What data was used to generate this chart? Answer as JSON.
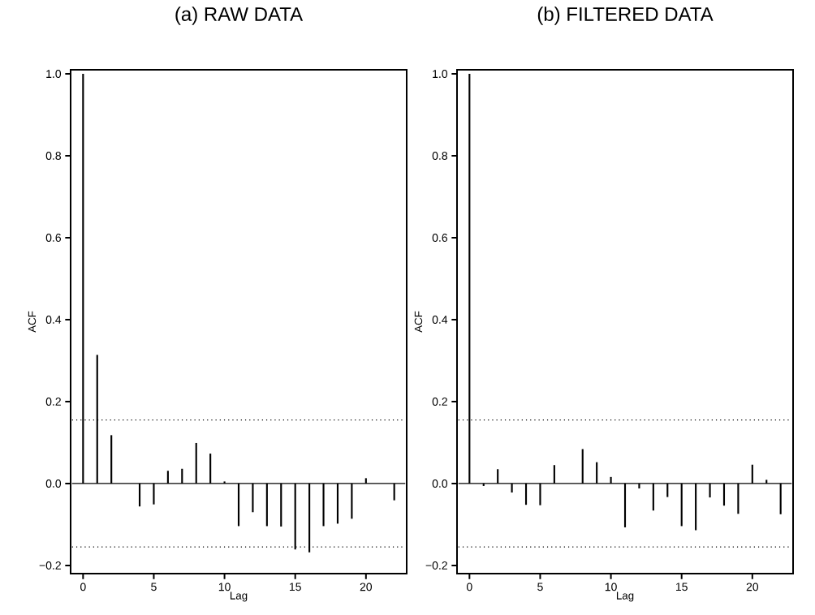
{
  "chart_data": [
    {
      "type": "bar",
      "title": "(a) RAW DATA",
      "xlabel": "Lag",
      "ylabel": "ACF",
      "color": "#000000",
      "x": [
        0,
        1,
        2,
        3,
        4,
        5,
        6,
        7,
        8,
        9,
        10,
        11,
        12,
        13,
        14,
        15,
        16,
        17,
        18,
        19,
        20,
        21,
        22
      ],
      "values": [
        1.0,
        0.314,
        0.118,
        0,
        -0.056,
        -0.051,
        0.031,
        0.036,
        0.099,
        0.073,
        0.005,
        -0.104,
        -0.07,
        -0.104,
        -0.105,
        -0.161,
        -0.168,
        -0.104,
        -0.098,
        -0.086,
        0.013,
        0,
        -0.041
      ],
      "xlim": [
        -0.88,
        22.88
      ],
      "ylim": [
        -0.22,
        1.01
      ],
      "xticks": [
        0,
        5,
        10,
        15,
        20
      ],
      "yticks": [
        {
          "value": -0.2,
          "label": "−0.2"
        },
        {
          "value": 0,
          "label": "0.0"
        },
        {
          "value": 0.2,
          "label": "0.2"
        },
        {
          "value": 0.4,
          "label": "0.4"
        },
        {
          "value": 0.6,
          "label": "0.6"
        },
        {
          "value": 0.8,
          "label": "0.8"
        },
        {
          "value": 1.0,
          "label": "1.0"
        }
      ],
      "ref_lines": [
        {
          "axis": "y",
          "value": 0,
          "line_style": "solid"
        },
        {
          "axis": "y",
          "value": 0.155,
          "line_style": "dotted"
        },
        {
          "axis": "y",
          "value": -0.155,
          "line_style": "dotted"
        }
      ]
    },
    {
      "type": "bar",
      "title": "(b) FILTERED DATA",
      "xlabel": "Lag",
      "ylabel": "ACF",
      "color": "#000000",
      "x": [
        0,
        1,
        2,
        3,
        4,
        5,
        6,
        7,
        8,
        9,
        10,
        11,
        12,
        13,
        14,
        15,
        16,
        17,
        18,
        19,
        20,
        21,
        22
      ],
      "values": [
        1.0,
        -0.006,
        0.035,
        -0.022,
        -0.052,
        -0.053,
        0.045,
        0,
        0.084,
        0.052,
        0.016,
        -0.107,
        -0.012,
        -0.066,
        -0.033,
        -0.104,
        -0.114,
        -0.034,
        -0.054,
        -0.074,
        0.046,
        0.009,
        -0.075
      ],
      "xlim": [
        -0.88,
        22.88
      ],
      "ylim": [
        -0.22,
        1.01
      ],
      "xticks": [
        0,
        5,
        10,
        15,
        20
      ],
      "yticks": [
        {
          "value": -0.2,
          "label": "−0.2"
        },
        {
          "value": 0,
          "label": "0.0"
        },
        {
          "value": 0.2,
          "label": "0.2"
        },
        {
          "value": 0.4,
          "label": "0.4"
        },
        {
          "value": 0.6,
          "label": "0.6"
        },
        {
          "value": 0.8,
          "label": "0.8"
        },
        {
          "value": 1.0,
          "label": "1.0"
        }
      ],
      "ref_lines": [
        {
          "axis": "y",
          "value": 0,
          "line_style": "solid"
        },
        {
          "axis": "y",
          "value": 0.155,
          "line_style": "dotted"
        },
        {
          "axis": "y",
          "value": -0.155,
          "line_style": "dotted"
        }
      ]
    }
  ]
}
